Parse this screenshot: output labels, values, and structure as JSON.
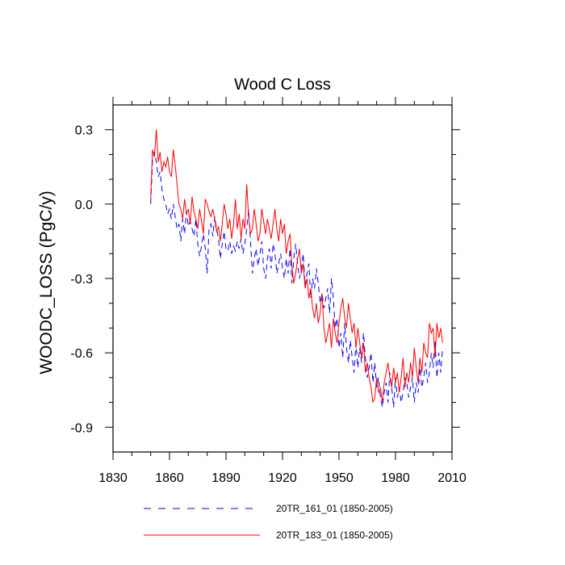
{
  "chart_data": {
    "type": "line",
    "title": "Wood C Loss",
    "xlabel": "",
    "ylabel": "WOODC_LOSS  (PgC/y)",
    "xlim": [
      1830,
      2010
    ],
    "ylim": [
      -1.0,
      0.4
    ],
    "x_ticks": [
      1830,
      1860,
      1890,
      1920,
      1950,
      1980,
      2010
    ],
    "x_tick_labels": [
      "1830",
      "1860",
      "1890",
      "1920",
      "1950",
      "1980",
      "2010"
    ],
    "y_ticks": [
      -0.9,
      -0.6,
      -0.3,
      0.0,
      0.3
    ],
    "y_tick_labels": [
      "-0.9",
      "-0.6",
      "-0.3",
      "0.0",
      "0.3"
    ],
    "grid": false,
    "legend_position": "bottom",
    "series": [
      {
        "name": "20TR_161_01 (1850-2005)",
        "color": "#0000ff",
        "dash": "dashed",
        "x_start": 1850,
        "x_step": 1,
        "values": [
          0.0,
          0.18,
          0.21,
          0.17,
          0.11,
          0.13,
          0.06,
          0.02,
          0.0,
          -0.04,
          -0.02,
          -0.06,
          0.0,
          -0.05,
          -0.1,
          -0.08,
          -0.15,
          -0.06,
          -0.12,
          -0.03,
          -0.09,
          -0.07,
          -0.1,
          -0.13,
          -0.06,
          -0.16,
          -0.21,
          -0.17,
          -0.12,
          -0.18,
          -0.28,
          -0.1,
          -0.08,
          -0.13,
          -0.05,
          -0.1,
          -0.14,
          -0.22,
          -0.16,
          -0.11,
          -0.18,
          -0.19,
          -0.15,
          -0.2,
          -0.17,
          -0.19,
          -0.15,
          -0.18,
          -0.14,
          -0.2,
          -0.16,
          -0.1,
          -0.02,
          -0.15,
          -0.28,
          -0.22,
          -0.18,
          -0.25,
          -0.2,
          -0.15,
          -0.26,
          -0.3,
          -0.22,
          -0.18,
          -0.26,
          -0.16,
          -0.2,
          -0.28,
          -0.24,
          -0.2,
          -0.26,
          -0.3,
          -0.22,
          -0.28,
          -0.18,
          -0.32,
          -0.22,
          -0.16,
          -0.24,
          -0.3,
          -0.26,
          -0.2,
          -0.33,
          -0.28,
          -0.24,
          -0.38,
          -0.3,
          -0.34,
          -0.26,
          -0.32,
          -0.4,
          -0.36,
          -0.42,
          -0.38,
          -0.34,
          -0.44,
          -0.3,
          -0.38,
          -0.5,
          -0.46,
          -0.58,
          -0.52,
          -0.62,
          -0.48,
          -0.58,
          -0.64,
          -0.55,
          -0.62,
          -0.68,
          -0.56,
          -0.66,
          -0.58,
          -0.64,
          -0.52,
          -0.62,
          -0.7,
          -0.66,
          -0.6,
          -0.72,
          -0.64,
          -0.74,
          -0.7,
          -0.78,
          -0.82,
          -0.76,
          -0.72,
          -0.8,
          -0.68,
          -0.74,
          -0.82,
          -0.7,
          -0.78,
          -0.74,
          -0.8,
          -0.76,
          -0.7,
          -0.72,
          -0.78,
          -0.74,
          -0.7,
          -0.8,
          -0.72,
          -0.76,
          -0.66,
          -0.74,
          -0.7,
          -0.64,
          -0.72,
          -0.68,
          -0.6,
          -0.66,
          -0.55,
          -0.7,
          -0.6,
          -0.68,
          -0.58
        ]
      },
      {
        "name": "20TR_183_01 (1850-2005)",
        "color": "#ff0000",
        "dash": "solid",
        "x_start": 1850,
        "x_step": 1,
        "values": [
          0.02,
          0.22,
          0.19,
          0.3,
          0.17,
          0.21,
          0.13,
          0.17,
          0.15,
          0.19,
          0.13,
          0.11,
          0.22,
          0.16,
          0.08,
          0.0,
          -0.02,
          -0.06,
          0.02,
          -0.04,
          -0.02,
          -0.08,
          0.03,
          -0.03,
          -0.06,
          -0.1,
          -0.02,
          -0.07,
          -0.12,
          0.02,
          0.0,
          -0.03,
          -0.05,
          -0.02,
          -0.06,
          -0.11,
          -0.09,
          -0.15,
          -0.08,
          0.0,
          -0.04,
          -0.1,
          -0.06,
          -0.14,
          -0.08,
          0.02,
          -0.1,
          -0.04,
          -0.14,
          -0.06,
          -0.1,
          0.08,
          -0.05,
          -0.12,
          -0.1,
          -0.02,
          -0.08,
          -0.15,
          -0.12,
          -0.02,
          -0.07,
          -0.12,
          -0.06,
          -0.1,
          -0.14,
          -0.08,
          -0.02,
          -0.1,
          -0.15,
          -0.06,
          -0.12,
          -0.08,
          -0.2,
          -0.15,
          -0.12,
          -0.25,
          -0.32,
          -0.28,
          -0.22,
          -0.18,
          -0.28,
          -0.24,
          -0.34,
          -0.3,
          -0.38,
          -0.34,
          -0.42,
          -0.46,
          -0.4,
          -0.48,
          -0.44,
          -0.36,
          -0.5,
          -0.56,
          -0.52,
          -0.48,
          -0.58,
          -0.46,
          -0.52,
          -0.56,
          -0.48,
          -0.42,
          -0.38,
          -0.46,
          -0.5,
          -0.4,
          -0.46,
          -0.52,
          -0.48,
          -0.58,
          -0.5,
          -0.56,
          -0.62,
          -0.56,
          -0.68,
          -0.64,
          -0.7,
          -0.74,
          -0.8,
          -0.78,
          -0.7,
          -0.76,
          -0.74,
          -0.8,
          -0.72,
          -0.68,
          -0.64,
          -0.7,
          -0.74,
          -0.66,
          -0.72,
          -0.68,
          -0.76,
          -0.7,
          -0.62,
          -0.74,
          -0.68,
          -0.72,
          -0.64,
          -0.7,
          -0.58,
          -0.66,
          -0.72,
          -0.62,
          -0.68,
          -0.56,
          -0.6,
          -0.62,
          -0.48,
          -0.52,
          -0.5,
          -0.62,
          -0.48,
          -0.54,
          -0.5,
          -0.56
        ]
      }
    ]
  }
}
